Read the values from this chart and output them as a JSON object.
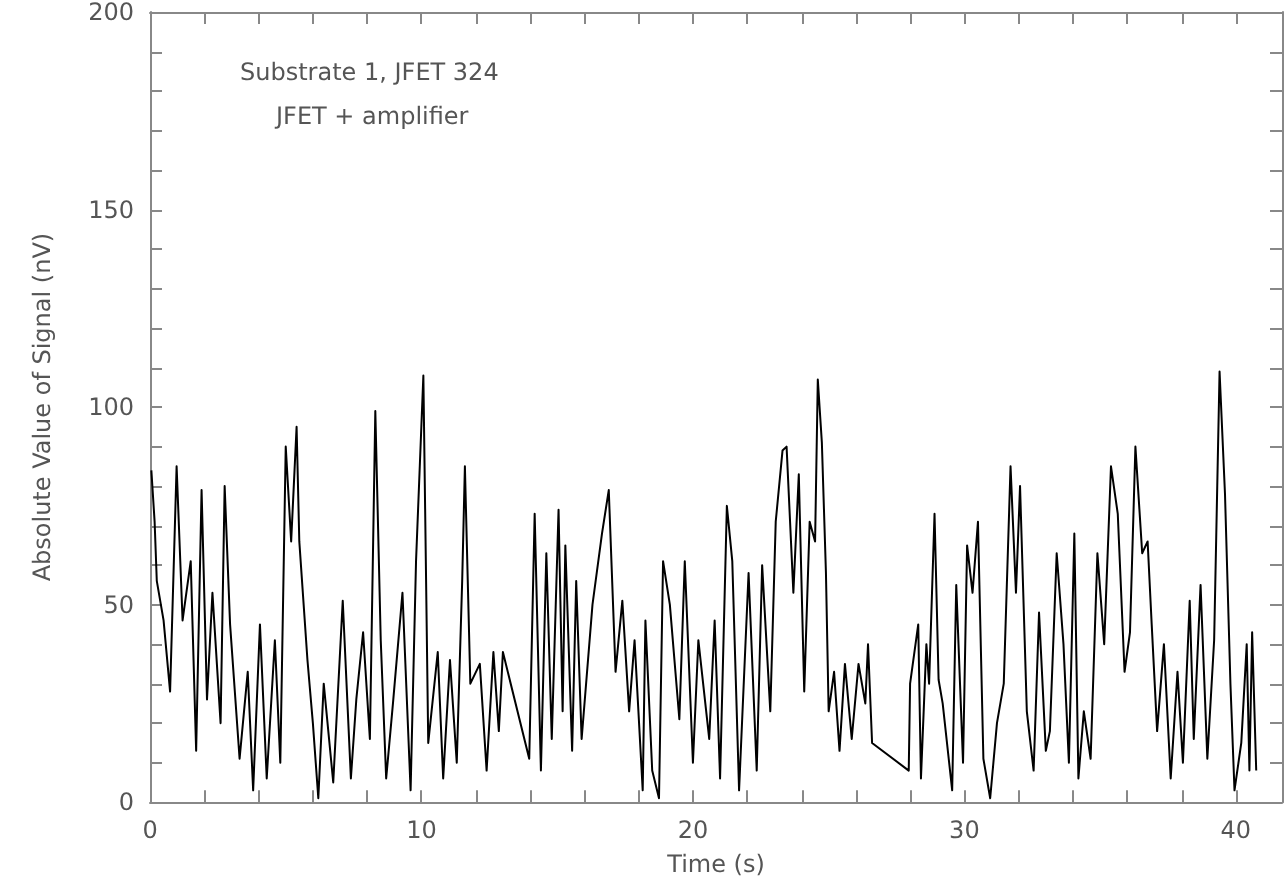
{
  "chart_data": {
    "type": "line",
    "xlabel": "Time (s)",
    "ylabel": "Absolute Value of Signal (nV)",
    "annotations": [
      "Substrate 1, JFET 324",
      "JFET + amplifier"
    ],
    "xlim": [
      0,
      41.7
    ],
    "ylim": [
      0,
      200
    ],
    "xticks": [
      0,
      {
        "value": 2,
        "label": null
      },
      {
        "value": 4,
        "label": null
      },
      {
        "value": 6,
        "label": null
      },
      {
        "value": 8,
        "label": null
      },
      10,
      {
        "value": 12,
        "label": null
      },
      {
        "value": 14,
        "label": null
      },
      {
        "value": 16,
        "label": null
      },
      {
        "value": 18,
        "label": null
      },
      20,
      {
        "value": 22,
        "label": null
      },
      {
        "value": 24,
        "label": null
      },
      {
        "value": 26,
        "label": null
      },
      {
        "value": 28,
        "label": null
      },
      30,
      {
        "value": 32,
        "label": null
      },
      {
        "value": 34,
        "label": null
      },
      {
        "value": 36,
        "label": null
      },
      {
        "value": 38,
        "label": null
      },
      40
    ],
    "yticks": [
      0,
      {
        "value": 10,
        "label": null
      },
      {
        "value": 20,
        "label": null
      },
      {
        "value": 30,
        "label": null
      },
      {
        "value": 40,
        "label": null
      },
      50,
      {
        "value": 60,
        "label": null
      },
      {
        "value": 70,
        "label": null
      },
      {
        "value": 80,
        "label": null
      },
      {
        "value": 90,
        "label": null
      },
      100,
      {
        "value": 110,
        "label": null
      },
      {
        "value": 120,
        "label": null
      },
      {
        "value": 130,
        "label": null
      },
      {
        "value": 140,
        "label": null
      },
      150,
      {
        "value": 160,
        "label": null
      },
      {
        "value": 170,
        "label": null
      },
      {
        "value": 180,
        "label": null
      },
      {
        "value": 190,
        "label": null
      },
      200
    ],
    "grid": false,
    "marker": "none",
    "line_style": "solid",
    "series": [
      {
        "color": "#000000",
        "x": [
          0.05,
          0.17,
          0.25,
          0.5,
          0.74,
          0.98,
          1.2,
          1.5,
          1.7,
          1.9,
          2.1,
          2.3,
          2.6,
          2.75,
          2.95,
          3.3,
          3.6,
          3.8,
          4.05,
          4.3,
          4.6,
          4.8,
          5.0,
          5.2,
          5.4,
          5.5,
          5.8,
          6.0,
          6.2,
          6.4,
          6.75,
          7.1,
          7.4,
          7.6,
          7.85,
          8.1,
          8.3,
          8.5,
          8.7,
          8.95,
          9.3,
          9.6,
          9.8,
          10.07,
          10.25,
          10.6,
          10.8,
          11.05,
          11.3,
          11.5,
          11.6,
          11.8,
          12.15,
          12.4,
          12.65,
          12.85,
          13.0,
          13.97,
          14.17,
          14.4,
          14.6,
          14.8,
          15.05,
          15.2,
          15.3,
          15.55,
          15.7,
          15.9,
          16.3,
          16.65,
          16.9,
          17.15,
          17.4,
          17.65,
          17.85,
          18.15,
          18.25,
          18.5,
          18.75,
          18.9,
          19.15,
          19.5,
          19.7,
          20.0,
          20.2,
          20.6,
          20.8,
          21.0,
          21.25,
          21.45,
          21.7,
          22.05,
          22.35,
          22.55,
          22.85,
          23.05,
          23.3,
          23.45,
          23.7,
          23.9,
          24.1,
          24.3,
          24.5,
          24.6,
          24.75,
          24.9,
          25.0,
          25.2,
          25.4,
          25.6,
          25.85,
          26.1,
          26.35,
          26.45,
          26.6,
          27.95,
          28.0,
          28.3,
          28.4,
          28.6,
          28.7,
          28.9,
          29.05,
          29.2,
          29.55,
          29.7,
          29.95,
          30.1,
          30.3,
          30.5,
          30.7,
          30.95,
          31.2,
          31.45,
          31.7,
          31.9,
          32.05,
          32.3,
          32.55,
          32.75,
          33.0,
          33.15,
          33.4,
          33.65,
          33.85,
          34.05,
          34.2,
          34.4,
          34.65,
          34.9,
          35.15,
          35.4,
          35.65,
          35.9,
          36.1,
          36.3,
          36.55,
          36.75,
          36.9,
          37.1,
          37.35,
          37.6,
          37.85,
          38.05,
          38.3,
          38.45,
          38.7,
          38.95,
          39.2,
          39.4,
          39.6,
          39.8,
          39.95,
          40.2,
          40.4,
          40.5,
          40.6,
          40.75
        ],
        "values": [
          84,
          71,
          56,
          46,
          28,
          85,
          46,
          61,
          13,
          79,
          26,
          53,
          20,
          80,
          45,
          11,
          33,
          3,
          45,
          6,
          41,
          10,
          90,
          66,
          95,
          66,
          36,
          20,
          1,
          30,
          5,
          51,
          6,
          26,
          43,
          16,
          99,
          41,
          6,
          25,
          53,
          3,
          61,
          108,
          15,
          38,
          6,
          36,
          10,
          56,
          85,
          30,
          35,
          8,
          38,
          18,
          38,
          11,
          73,
          8,
          63,
          16,
          74,
          23,
          65,
          13,
          56,
          16,
          50,
          68,
          79,
          33,
          51,
          23,
          41,
          3,
          46,
          8,
          1,
          61,
          50,
          21,
          61,
          10,
          41,
          16,
          46,
          6,
          75,
          61,
          3,
          58,
          8,
          60,
          23,
          71,
          89,
          90,
          53,
          83,
          28,
          71,
          66,
          107,
          91,
          58,
          23,
          33,
          13,
          35,
          16,
          35,
          25,
          40,
          15,
          8,
          30,
          45,
          6,
          40,
          30,
          73,
          31,
          25,
          3,
          55,
          10,
          65,
          53,
          71,
          11,
          1,
          20,
          30,
          85,
          53,
          80,
          23,
          8,
          48,
          13,
          18,
          63,
          40,
          10,
          68,
          6,
          23,
          11,
          63,
          40,
          85,
          73,
          33,
          43,
          90,
          63,
          66,
          45,
          18,
          40,
          6,
          33,
          10,
          51,
          16,
          55,
          11,
          41,
          109,
          78,
          30,
          3,
          15,
          40,
          8,
          43,
          8
        ]
      }
    ]
  }
}
